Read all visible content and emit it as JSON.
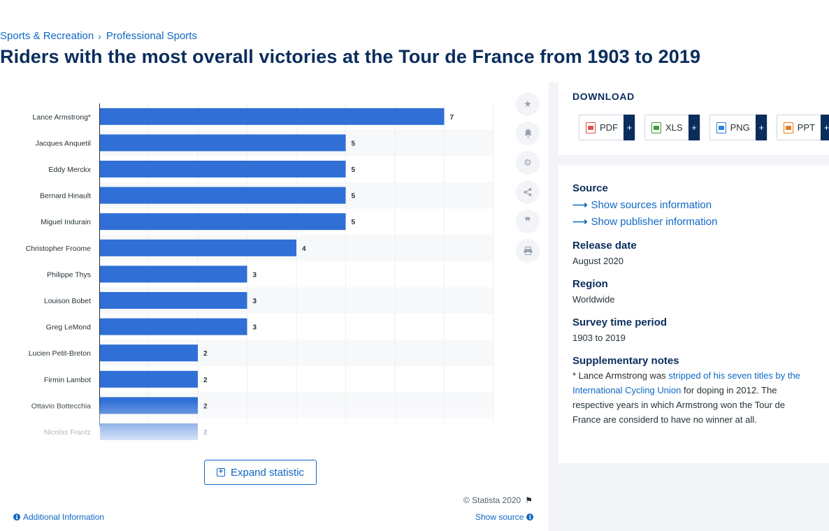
{
  "breadcrumb": {
    "items": [
      "Sports & Recreation",
      "Professional Sports"
    ],
    "separator": "›"
  },
  "page_title": "Riders with the most overall victories at the Tour de France from 1903 to 2019",
  "chart_actions": {
    "icons": [
      "star-icon",
      "bell-icon",
      "gear-icon",
      "share-icon",
      "quote-icon",
      "print-icon"
    ]
  },
  "expand_label": "Expand statistic",
  "copyright": "© Statista 2020",
  "additional_info_label": "Additional Information",
  "show_source_label": "Show source",
  "download": {
    "title": "DOWNLOAD",
    "buttons": [
      {
        "label": "PDF",
        "plus": "+",
        "icon_color": "#d9534f"
      },
      {
        "label": "XLS",
        "plus": "+",
        "icon_color": "#3c9a3c"
      },
      {
        "label": "PNG",
        "plus": "+",
        "icon_color": "#2f7fd6"
      },
      {
        "label": "PPT",
        "plus": "+",
        "icon_color": "#e67e22"
      }
    ]
  },
  "source_panel": {
    "source_heading": "Source",
    "sources_link": "Show sources information",
    "publisher_link": "Show publisher information",
    "release_heading": "Release date",
    "release_value": "August 2020",
    "region_heading": "Region",
    "region_value": "Worldwide",
    "period_heading": "Survey time period",
    "period_value": "1903 to 2019",
    "notes_heading": "Supplementary notes",
    "notes_prefix": "* Lance Armstrong was ",
    "notes_link": "stripped of his seven titles by the International Cycling Union",
    "notes_suffix": " for doping in 2012. The respective years in which Armstrong won the Tour de France are considerd to have no winner at all."
  },
  "colors": {
    "bar": "#2f6fd6",
    "accent": "#0f68c4",
    "title": "#0a2d5c"
  },
  "chart_data": {
    "type": "bar",
    "orientation": "horizontal",
    "categories": [
      "Lance Armstrong*",
      "Jacques Anquetil",
      "Eddy Merckx",
      "Bernard Hinault",
      "Miguel Indurain",
      "Christopher Froome",
      "Philippe Thys",
      "Louison Bobet",
      "Greg LeMond",
      "Lucien Petit-Breton",
      "Firmin Lambot",
      "Ottavio Bottecchia",
      "Nicolas Frantz"
    ],
    "values": [
      7,
      5,
      5,
      5,
      5,
      4,
      3,
      3,
      3,
      2,
      2,
      2,
      2
    ],
    "xlim": [
      0,
      8
    ],
    "grid": true,
    "data_labels": true
  }
}
